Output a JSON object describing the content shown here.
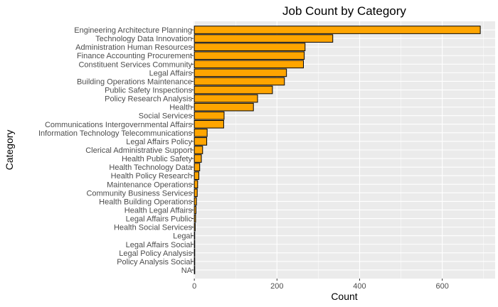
{
  "chart_data": {
    "type": "bar",
    "orientation": "horizontal",
    "title": "Job Count by Category",
    "xlabel": "Count",
    "ylabel": "Category",
    "xlim": [
      -2,
      728
    ],
    "xticks": [
      0,
      200,
      400,
      600
    ],
    "grid": true,
    "categories": [
      "Engineering Architecture  Planning",
      "Technology Data  Innovation",
      "Administration  Human Resources",
      "Finance Accounting  Procurement",
      "Constituent Services  Community",
      "Legal Affairs",
      "Building Operations  Maintenance",
      "Public Safety Inspections",
      "Policy Research  Analysis",
      "Health",
      "Social Services",
      "Communications  Intergovernmental Affairs",
      "Information Technology  Telecommunications",
      "Legal Affairs Policy",
      "Clerical  Administrative Support",
      "Health Public Safety",
      "Health Technology Data",
      "Health Policy Research",
      "Maintenance  Operations",
      "Community  Business Services",
      "Health Building Operations",
      "Health Legal Affairs",
      "Legal Affairs Public",
      "Health Social Services",
      "Legal",
      "Legal Affairs Social",
      "Legal Policy  Analysis",
      "Policy  Analysis Social",
      "NA"
    ],
    "values": [
      692,
      335,
      268,
      266,
      264,
      223,
      218,
      189,
      153,
      143,
      72,
      71,
      31,
      30,
      20,
      17,
      13,
      11,
      8,
      7,
      5,
      4,
      3,
      2,
      1,
      1,
      1,
      1,
      1
    ],
    "colors": {
      "bar_fill": "#FFA500",
      "bar_stroke": "#000000",
      "panel_bg": "#EBEBEB",
      "grid": "#FFFFFF"
    }
  }
}
